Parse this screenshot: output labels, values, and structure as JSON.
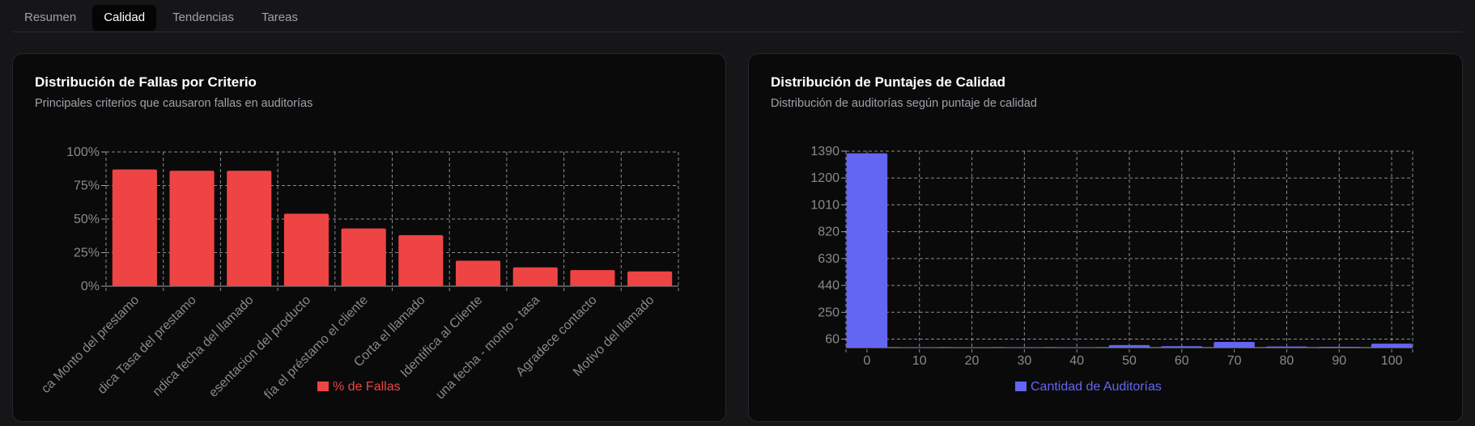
{
  "tabs": [
    {
      "label": "Resumen",
      "active": false
    },
    {
      "label": "Calidad",
      "active": true
    },
    {
      "label": "Tendencias",
      "active": false
    },
    {
      "label": "Tareas",
      "active": false
    }
  ],
  "cards": [
    {
      "title": "Distribución de Fallas por Criterio",
      "subtitle": "Principales criterios que causaron fallas en auditorías"
    },
    {
      "title": "Distribución de Puntajes de Calidad",
      "subtitle": "Distribución de auditorías según puntaje de calidad"
    }
  ],
  "colors": {
    "bar_red": "#ef4444",
    "bar_blue": "#6366f1",
    "grid": "#a3a3a3",
    "tick": "#8a8a8a"
  },
  "chart_data": [
    {
      "type": "bar",
      "categories": [
        "ca Monto del prestamo",
        "dica Tasa del prestamo",
        "ndica fecha del llamado",
        "esentacion del producto",
        "fía el préstamo el cliente",
        "Corta el llamado",
        "Identifica al Cliente",
        "una fecha - monto - tasa",
        "Agradece contacto",
        "Motivo del llamado"
      ],
      "series": [
        {
          "name": "% de Fallas",
          "values": [
            87,
            86,
            86,
            54,
            43,
            38,
            19,
            14,
            12,
            11
          ]
        }
      ],
      "yticks": [
        "0%",
        "25%",
        "50%",
        "75%",
        "100%"
      ],
      "ylim": [
        0,
        100
      ],
      "legend": "bottom-center",
      "grid": true
    },
    {
      "type": "bar",
      "categories": [
        "0",
        "10",
        "20",
        "30",
        "40",
        "50",
        "60",
        "70",
        "80",
        "90",
        "100"
      ],
      "series": [
        {
          "name": "Cantidad de Auditorías",
          "values": [
            1375,
            3,
            2,
            3,
            3,
            18,
            10,
            40,
            8,
            6,
            28
          ]
        }
      ],
      "yticks": [
        "60",
        "250",
        "440",
        "630",
        "820",
        "1010",
        "1200",
        "1390"
      ],
      "ylim": [
        0,
        1390
      ],
      "legend": "bottom-center",
      "grid": true
    }
  ]
}
